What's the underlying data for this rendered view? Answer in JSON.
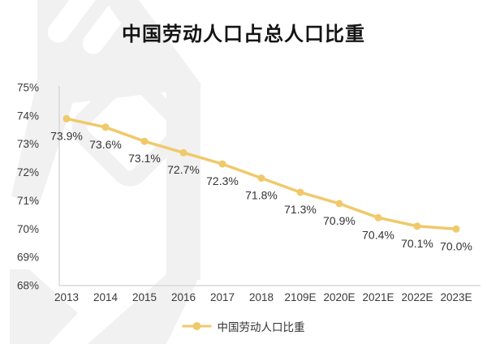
{
  "title": "中国劳动人口占总人口比重",
  "chart_data": {
    "type": "line",
    "title": "中国劳动人口占总人口比重",
    "categories": [
      "2013",
      "2014",
      "2015",
      "2016",
      "2017",
      "2018",
      "2109E",
      "2020E",
      "2021E",
      "2022E",
      "2023E"
    ],
    "series": [
      {
        "name": "中国劳动人口比重",
        "values": [
          73.9,
          73.6,
          73.1,
          72.7,
          72.3,
          71.8,
          71.3,
          70.9,
          70.4,
          70.1,
          70.0
        ],
        "labels": [
          "73.9%",
          "73.6%",
          "73.1%",
          "72.7%",
          "72.3%",
          "71.8%",
          "71.3%",
          "70.9%",
          "70.4%",
          "70.1%",
          "70.0%"
        ]
      }
    ],
    "yticks": [
      "75%",
      "74%",
      "73%",
      "72%",
      "71%",
      "70%",
      "69%",
      "68%"
    ],
    "ylim": [
      68,
      75
    ],
    "xlabel": "",
    "ylabel": "",
    "grid": false,
    "legend_position": "bottom"
  },
  "legend": {
    "label": "中国劳动人口比重"
  },
  "colors": {
    "line": "#F0C96A",
    "marker": "#F0C96A",
    "axis": "#D8D8D8",
    "tick_text": "#3A3A3A",
    "data_label_text": "#333333",
    "title_text": "#141414",
    "watermark": "#F1F1F2"
  }
}
